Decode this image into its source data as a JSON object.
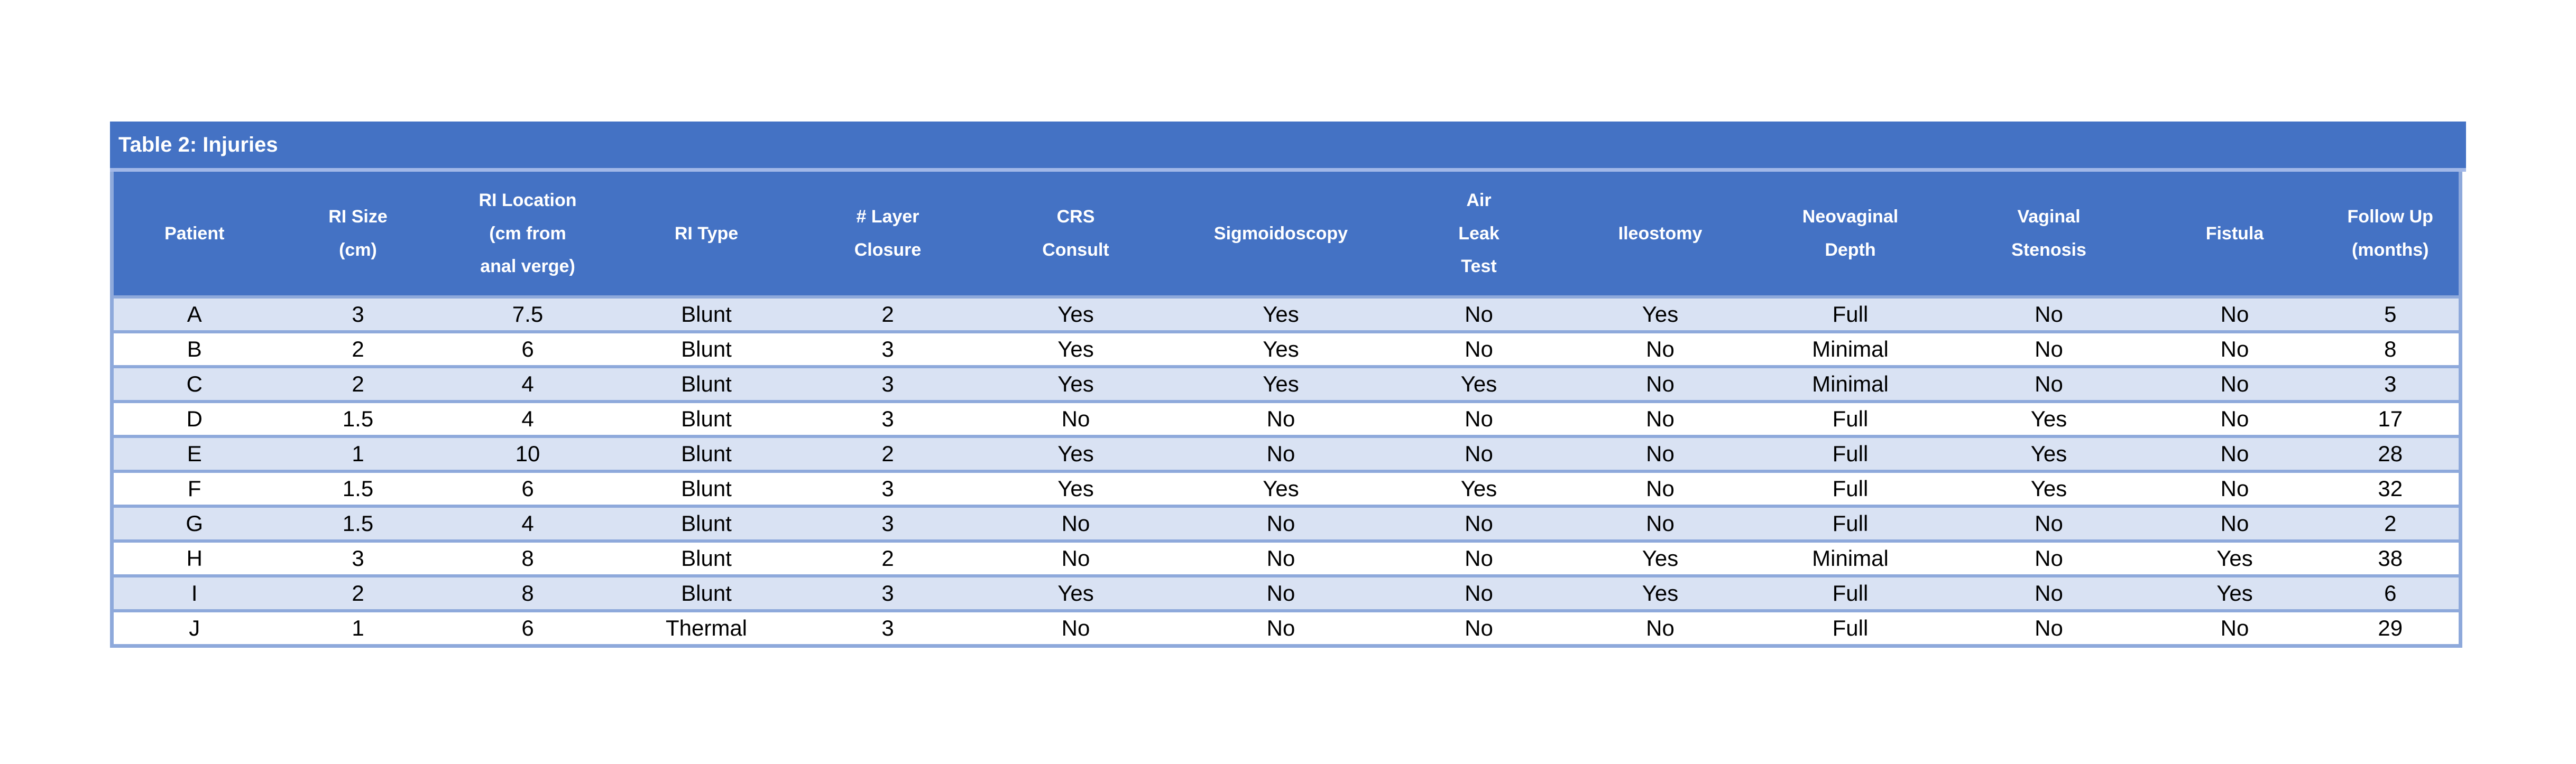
{
  "table": {
    "title": "Table 2: Injuries",
    "columns": [
      "Patient",
      "RI Size\n(cm)",
      "RI Location\n(cm from\nanal verge)",
      "RI Type",
      "# Layer\nClosure",
      "CRS\nConsult",
      "Sigmoidoscopy",
      "Air\nLeak\nTest",
      "Ileostomy",
      "Neovaginal\nDepth",
      "Vaginal\nStenosis",
      "Fistula",
      "Follow Up\n(months)"
    ],
    "rows": [
      [
        "A",
        "3",
        "7.5",
        "Blunt",
        "2",
        "Yes",
        "Yes",
        "No",
        "Yes",
        "Full",
        "No",
        "No",
        "5"
      ],
      [
        "B",
        "2",
        "6",
        "Blunt",
        "3",
        "Yes",
        "Yes",
        "No",
        "No",
        "Minimal",
        "No",
        "No",
        "8"
      ],
      [
        "C",
        "2",
        "4",
        "Blunt",
        "3",
        "Yes",
        "Yes",
        "Yes",
        "No",
        "Minimal",
        "No",
        "No",
        "3"
      ],
      [
        "D",
        "1.5",
        "4",
        "Blunt",
        "3",
        "No",
        "No",
        "No",
        "No",
        "Full",
        "Yes",
        "No",
        "17"
      ],
      [
        "E",
        "1",
        "10",
        "Blunt",
        "2",
        "Yes",
        "No",
        "No",
        "No",
        "Full",
        "Yes",
        "No",
        "28"
      ],
      [
        "F",
        "1.5",
        "6",
        "Blunt",
        "3",
        "Yes",
        "Yes",
        "Yes",
        "No",
        "Full",
        "Yes",
        "No",
        "32"
      ],
      [
        "G",
        "1.5",
        "4",
        "Blunt",
        "3",
        "No",
        "No",
        "No",
        "No",
        "Full",
        "No",
        "No",
        "2"
      ],
      [
        "H",
        "3",
        "8",
        "Blunt",
        "2",
        "No",
        "No",
        "No",
        "Yes",
        "Minimal",
        "No",
        "Yes",
        "38"
      ],
      [
        "I",
        "2",
        "8",
        "Blunt",
        "3",
        "Yes",
        "No",
        "No",
        "Yes",
        "Full",
        "No",
        "Yes",
        "6"
      ],
      [
        "J",
        "1",
        "6",
        "Thermal",
        "3",
        "No",
        "No",
        "No",
        "No",
        "Full",
        "No",
        "No",
        "29"
      ]
    ],
    "colors": {
      "title_bg": "#4472C4",
      "header_bg": "#4472C4",
      "header_text": "#FFFFFF",
      "divider": "#A2B8E8",
      "row_border": "#8EA9DB",
      "stripe_bg": "#D9E2F3",
      "row_bg": "#FFFFFF",
      "body_text": "#000000"
    }
  }
}
